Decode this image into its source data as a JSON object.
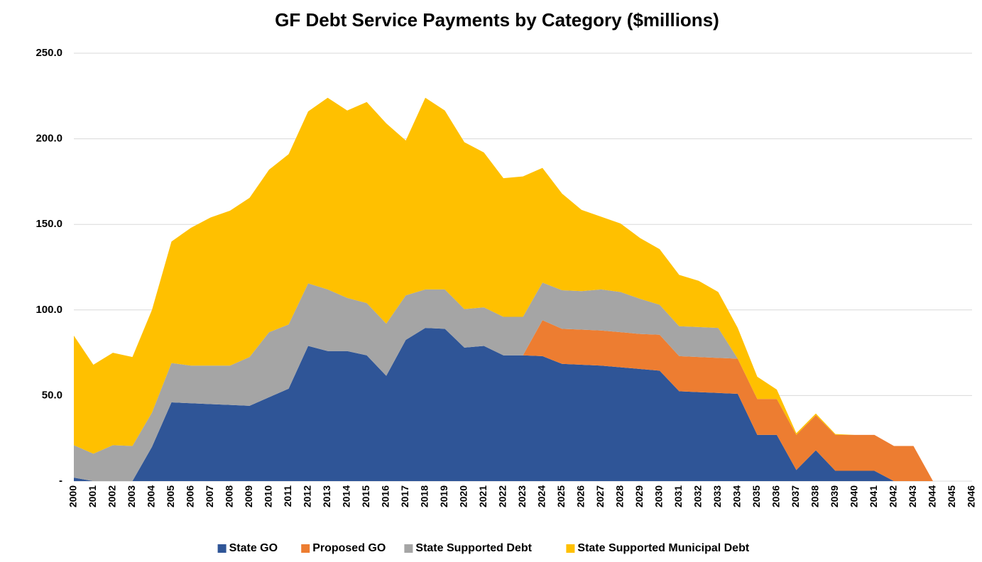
{
  "chart_data": {
    "type": "stacked_area",
    "title": "GF Debt Service Payments by Category ($millions)",
    "categories": [
      "2000",
      "2001",
      "2002",
      "2003",
      "2004",
      "2005",
      "2006",
      "2007",
      "2008",
      "2009",
      "2010",
      "2011",
      "2012",
      "2013",
      "2014",
      "2015",
      "2016",
      "2017",
      "2018",
      "2019",
      "2020",
      "2021",
      "2022",
      "2023",
      "2024",
      "2025",
      "2026",
      "2027",
      "2028",
      "2029",
      "2030",
      "2031",
      "2032",
      "2033",
      "2034",
      "2035",
      "2036",
      "2037",
      "2038",
      "2039",
      "2040",
      "2041",
      "2042",
      "2043",
      "2044",
      "2045",
      "2046"
    ],
    "series": [
      {
        "name": "State GO",
        "color": "#2f5597",
        "values": [
          2,
          0,
          0,
          0,
          20,
          46,
          45.5,
          45,
          44.5,
          44,
          49,
          54,
          79,
          76,
          76,
          73.5,
          61.5,
          82.5,
          89.5,
          89,
          78,
          79,
          73.5,
          73.5,
          73,
          68.5,
          68,
          67.5,
          66.5,
          65.5,
          64.5,
          52.5,
          52,
          51.5,
          51,
          27,
          27,
          6.5,
          18,
          6,
          6,
          6,
          0,
          0,
          0,
          0,
          0
        ]
      },
      {
        "name": "Proposed GO",
        "color": "#ed7d31",
        "values": [
          0,
          0,
          0,
          0,
          0,
          0,
          0,
          0,
          0,
          0,
          0,
          0,
          0,
          0,
          0,
          0,
          0,
          0,
          0,
          0,
          0,
          0,
          0,
          0,
          21,
          20.5,
          20.5,
          20.5,
          20.5,
          20.5,
          21,
          20.5,
          20.5,
          20.5,
          20.5,
          21,
          21,
          20.5,
          20.5,
          21,
          21,
          21,
          20.5,
          20.5,
          0,
          0,
          0
        ]
      },
      {
        "name": "State Supported Debt",
        "color": "#a5a5a5",
        "values": [
          19,
          16,
          21,
          20.5,
          20,
          23,
          22,
          22.5,
          23,
          28.5,
          38,
          37.5,
          36.5,
          36,
          31,
          30.5,
          30.5,
          26,
          22.5,
          23,
          22.5,
          22.5,
          22.5,
          22.5,
          22,
          22.5,
          22.5,
          24,
          23.5,
          20.5,
          17.5,
          17.5,
          17.5,
          17.5,
          0,
          0,
          0,
          0,
          0,
          0,
          0,
          0,
          0,
          0,
          0,
          0,
          0
        ]
      },
      {
        "name": "State Supported Municipal Debt",
        "color": "#ffc000",
        "values": [
          64,
          52,
          54,
          52,
          60,
          71,
          80.5,
          86.5,
          90.5,
          93,
          95,
          99.5,
          100.5,
          112,
          109.5,
          117.5,
          117,
          90.5,
          112,
          104.5,
          97.5,
          90.5,
          81,
          82,
          67,
          56.5,
          47.5,
          42.5,
          40,
          35.5,
          32.5,
          30,
          27,
          21,
          18,
          13,
          5.5,
          1,
          1,
          0.5,
          0,
          0,
          0,
          0,
          0,
          0,
          0
        ]
      }
    ],
    "ylim": [
      0,
      250
    ],
    "yticks": [
      {
        "value": 0,
        "label": "-"
      },
      {
        "value": 50,
        "label": "50.0"
      },
      {
        "value": 100,
        "label": "100.0"
      },
      {
        "value": 150,
        "label": "150.0"
      },
      {
        "value": 200,
        "label": "200.0"
      },
      {
        "value": 250,
        "label": "250.0"
      }
    ],
    "grid": true,
    "legend": "bottom"
  }
}
